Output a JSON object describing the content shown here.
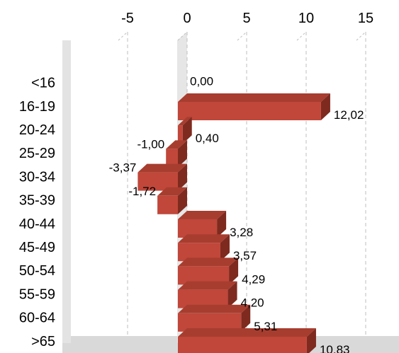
{
  "chart_data": {
    "type": "bar",
    "orientation": "horizontal",
    "style": "3d",
    "categories": [
      "<16",
      "16-19",
      "20-24",
      "25-29",
      "30-34",
      "35-39",
      "40-44",
      "45-49",
      "50-54",
      "55-59",
      "60-64",
      ">65"
    ],
    "values": [
      0.0,
      12.02,
      0.4,
      -1.0,
      -3.37,
      -1.72,
      3.28,
      3.57,
      4.29,
      4.2,
      5.31,
      10.83
    ],
    "data_labels": [
      "0,00",
      "12,02",
      "0,40",
      "-1,00",
      "-3,37",
      "-1,72",
      "3,28",
      "3,57",
      "4,29",
      "4,20",
      "5,31",
      "10,83"
    ],
    "x_ticks": [
      "-5",
      "0",
      "5",
      "10",
      "15"
    ],
    "x_tick_values": [
      -5,
      0,
      5,
      10,
      15
    ],
    "xlim": [
      -10,
      15
    ],
    "axis_position": "top",
    "grid": "vertical-dashed",
    "title": "",
    "xlabel": "",
    "ylabel": "",
    "colors": {
      "bar_front": "#c0473a",
      "bar_top": "#a73d2f",
      "bar_side": "#7e2a1f",
      "grid": "#bfbfbf",
      "floor": "#d9d9d9"
    }
  }
}
